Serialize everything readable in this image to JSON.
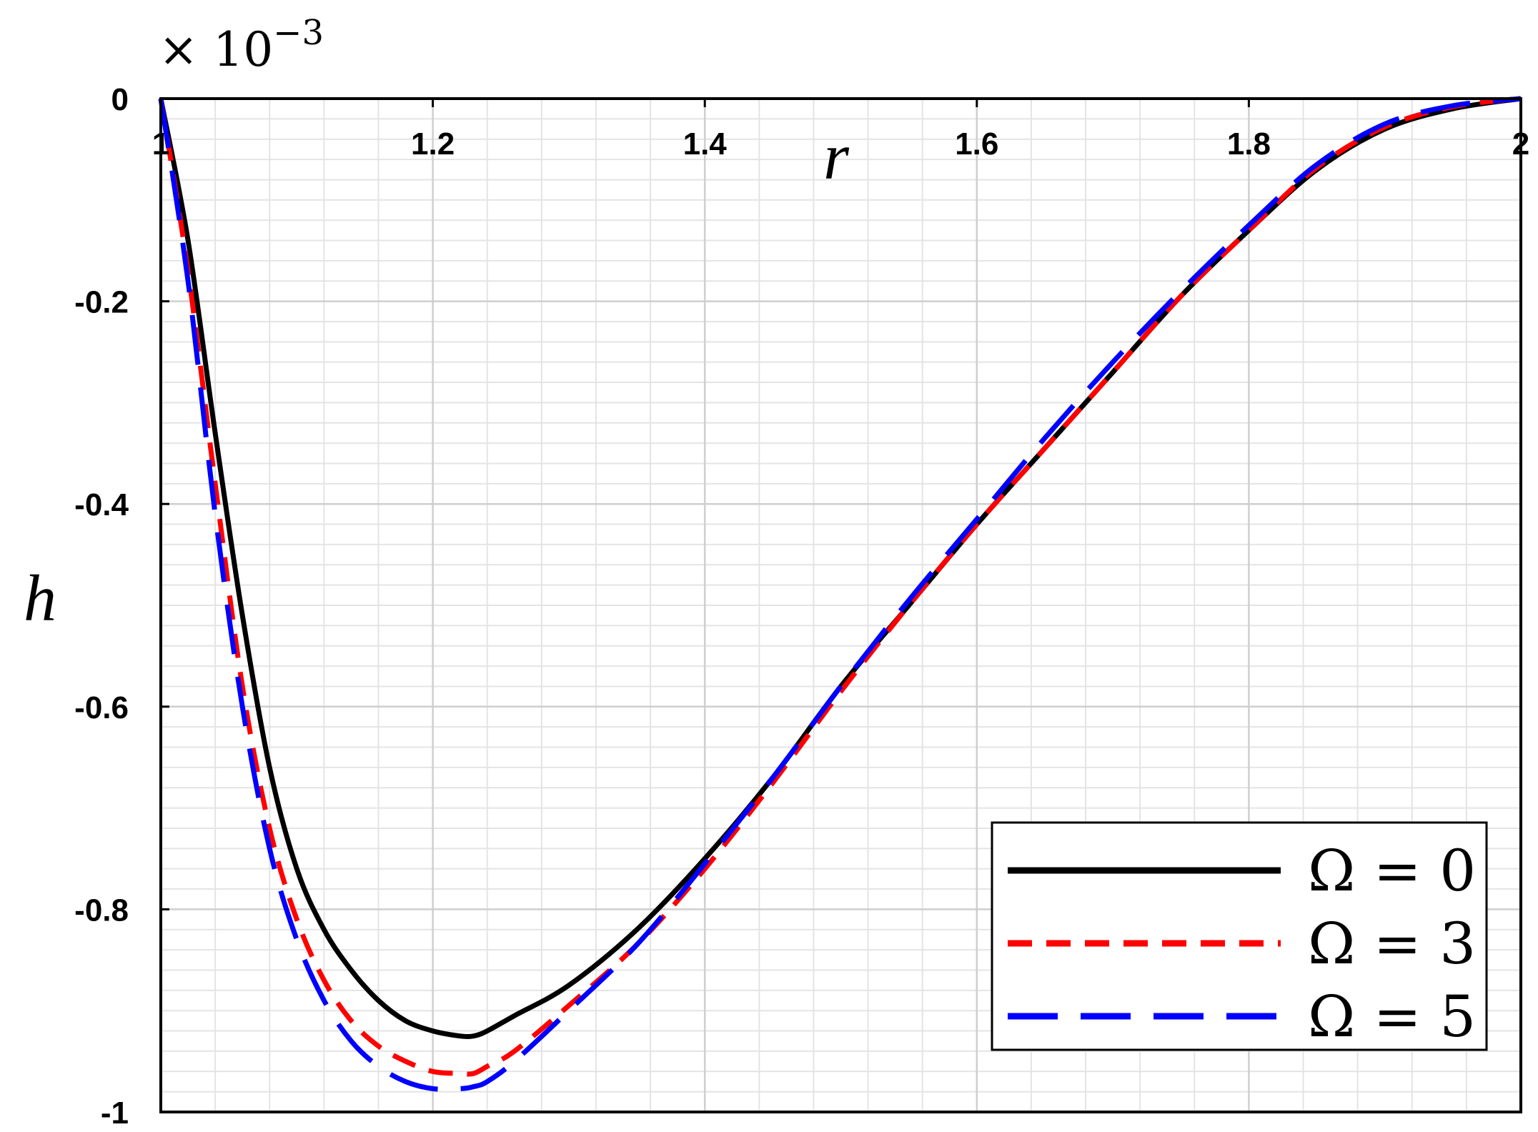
{
  "chart_data": {
    "type": "line",
    "xlabel": "r",
    "ylabel": "h",
    "y_multiplier": "× 10",
    "y_multiplier_exponent": "−3",
    "xlim": [
      1,
      2
    ],
    "ylim": [
      -1,
      0
    ],
    "x_ticks": [
      1,
      1.2,
      1.4,
      1.6,
      1.8,
      2
    ],
    "x_tick_labels": [
      "1",
      "1.2",
      "1.4",
      "1.6",
      "1.8",
      "2"
    ],
    "y_ticks": [
      0,
      -0.2,
      -0.4,
      -0.6,
      -0.8,
      -1
    ],
    "y_tick_labels": [
      "0",
      "-0.2",
      "-0.4",
      "-0.6",
      "-0.8",
      "-1"
    ],
    "x_axis_position": "top",
    "grid": true,
    "legend_position": "bottom-right",
    "series": [
      {
        "name": "Ω = 0",
        "color": "#000000",
        "style": "solid",
        "x": [
          1.0,
          1.02,
          1.04,
          1.06,
          1.08,
          1.1,
          1.12,
          1.14,
          1.16,
          1.18,
          1.2,
          1.22,
          1.23,
          1.24,
          1.26,
          1.3,
          1.35,
          1.4,
          1.45,
          1.5,
          1.55,
          1.6,
          1.65,
          1.7,
          1.75,
          1.8,
          1.85,
          1.9,
          1.95,
          2.0
        ],
        "y": [
          0.0,
          -0.14,
          -0.33,
          -0.51,
          -0.66,
          -0.76,
          -0.82,
          -0.86,
          -0.89,
          -0.91,
          -0.92,
          -0.925,
          -0.925,
          -0.92,
          -0.905,
          -0.875,
          -0.82,
          -0.75,
          -0.67,
          -0.58,
          -0.5,
          -0.42,
          -0.345,
          -0.27,
          -0.195,
          -0.13,
          -0.07,
          -0.03,
          -0.01,
          0.0
        ]
      },
      {
        "name": "Ω = 3",
        "color": "#ff0000",
        "style": "dashed",
        "x": [
          1.0,
          1.02,
          1.04,
          1.06,
          1.08,
          1.1,
          1.12,
          1.14,
          1.16,
          1.18,
          1.2,
          1.22,
          1.23,
          1.24,
          1.26,
          1.3,
          1.35,
          1.4,
          1.45,
          1.5,
          1.55,
          1.6,
          1.65,
          1.7,
          1.75,
          1.8,
          1.85,
          1.9,
          1.95,
          2.0
        ],
        "y": [
          0.0,
          -0.17,
          -0.38,
          -0.58,
          -0.72,
          -0.81,
          -0.87,
          -0.91,
          -0.935,
          -0.95,
          -0.96,
          -0.962,
          -0.962,
          -0.955,
          -0.94,
          -0.895,
          -0.835,
          -0.76,
          -0.675,
          -0.585,
          -0.5,
          -0.42,
          -0.345,
          -0.27,
          -0.195,
          -0.13,
          -0.068,
          -0.028,
          -0.008,
          0.0
        ]
      },
      {
        "name": "Ω = 5",
        "color": "#0000ff",
        "style": "long-dash",
        "x": [
          1.0,
          1.02,
          1.04,
          1.06,
          1.08,
          1.1,
          1.12,
          1.14,
          1.16,
          1.18,
          1.2,
          1.22,
          1.23,
          1.24,
          1.26,
          1.3,
          1.35,
          1.4,
          1.45,
          1.5,
          1.55,
          1.6,
          1.65,
          1.7,
          1.75,
          1.8,
          1.85,
          1.9,
          1.95,
          2.0
        ],
        "y": [
          0.0,
          -0.18,
          -0.41,
          -0.6,
          -0.74,
          -0.83,
          -0.89,
          -0.93,
          -0.955,
          -0.97,
          -0.977,
          -0.977,
          -0.975,
          -0.97,
          -0.95,
          -0.9,
          -0.835,
          -0.755,
          -0.67,
          -0.58,
          -0.495,
          -0.415,
          -0.335,
          -0.26,
          -0.19,
          -0.125,
          -0.065,
          -0.025,
          -0.007,
          0.0
        ]
      }
    ]
  }
}
